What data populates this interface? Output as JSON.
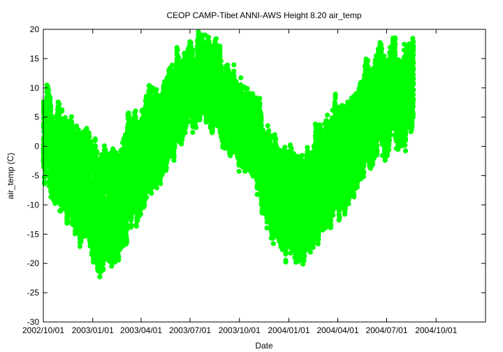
{
  "chart_data": {
    "type": "scatter",
    "title": "CEOP CAMP-Tibet ANNI-AWS Height 8.20 air_temp",
    "xlabel": "Date",
    "ylabel": "air_temp (C)",
    "xlim": [
      "2002-10-01",
      "2005-01-01"
    ],
    "ylim": [
      -30,
      20
    ],
    "x_ticks": [
      "2002/10/01",
      "2003/01/01",
      "2003/04/01",
      "2003/07/01",
      "2003/10/01",
      "2004/01/01",
      "2004/04/01",
      "2004/07/01",
      "2004/10/01"
    ],
    "y_ticks": [
      -30,
      -25,
      -20,
      -15,
      -10,
      -5,
      0,
      5,
      10,
      15,
      20
    ],
    "grid": false,
    "legend": "none",
    "series": [
      {
        "color": "#00ff00",
        "marker": "filled-circle",
        "x_start": "2002-10-01",
        "x_end": "2004-08-20",
        "samples_per_day": 24,
        "daily_mean": [
          {
            "date": "2002-10-01",
            "value": 2
          },
          {
            "date": "2002-10-15",
            "value": 0
          },
          {
            "date": "2002-11-01",
            "value": -2
          },
          {
            "date": "2002-12-01",
            "value": -5
          },
          {
            "date": "2003-01-01",
            "value": -9
          },
          {
            "date": "2003-01-20",
            "value": -11
          },
          {
            "date": "2003-02-15",
            "value": -8
          },
          {
            "date": "2003-03-15",
            "value": -5
          },
          {
            "date": "2003-04-15",
            "value": -1
          },
          {
            "date": "2003-05-15",
            "value": 4
          },
          {
            "date": "2003-06-15",
            "value": 8
          },
          {
            "date": "2003-07-15",
            "value": 10
          },
          {
            "date": "2003-08-15",
            "value": 10
          },
          {
            "date": "2003-09-15",
            "value": 7
          },
          {
            "date": "2003-10-15",
            "value": 3
          },
          {
            "date": "2003-11-15",
            "value": -3
          },
          {
            "date": "2003-12-15",
            "value": -8
          },
          {
            "date": "2004-01-15",
            "value": -10
          },
          {
            "date": "2004-02-15",
            "value": -8
          },
          {
            "date": "2004-03-15",
            "value": -4
          },
          {
            "date": "2004-04-15",
            "value": 0
          },
          {
            "date": "2004-05-15",
            "value": 4
          },
          {
            "date": "2004-06-15",
            "value": 8
          },
          {
            "date": "2004-07-15",
            "value": 9
          },
          {
            "date": "2004-08-20",
            "value": 10
          }
        ],
        "diurnal_amplitude": [
          {
            "date": "2002-10-01",
            "value": 5
          },
          {
            "date": "2003-01-01",
            "value": 8
          },
          {
            "date": "2003-04-01",
            "value": 7
          },
          {
            "date": "2003-07-01",
            "value": 5
          },
          {
            "date": "2003-10-01",
            "value": 5
          },
          {
            "date": "2004-01-01",
            "value": 7
          },
          {
            "date": "2004-04-01",
            "value": 7
          },
          {
            "date": "2004-08-20",
            "value": 6
          }
        ]
      }
    ]
  }
}
